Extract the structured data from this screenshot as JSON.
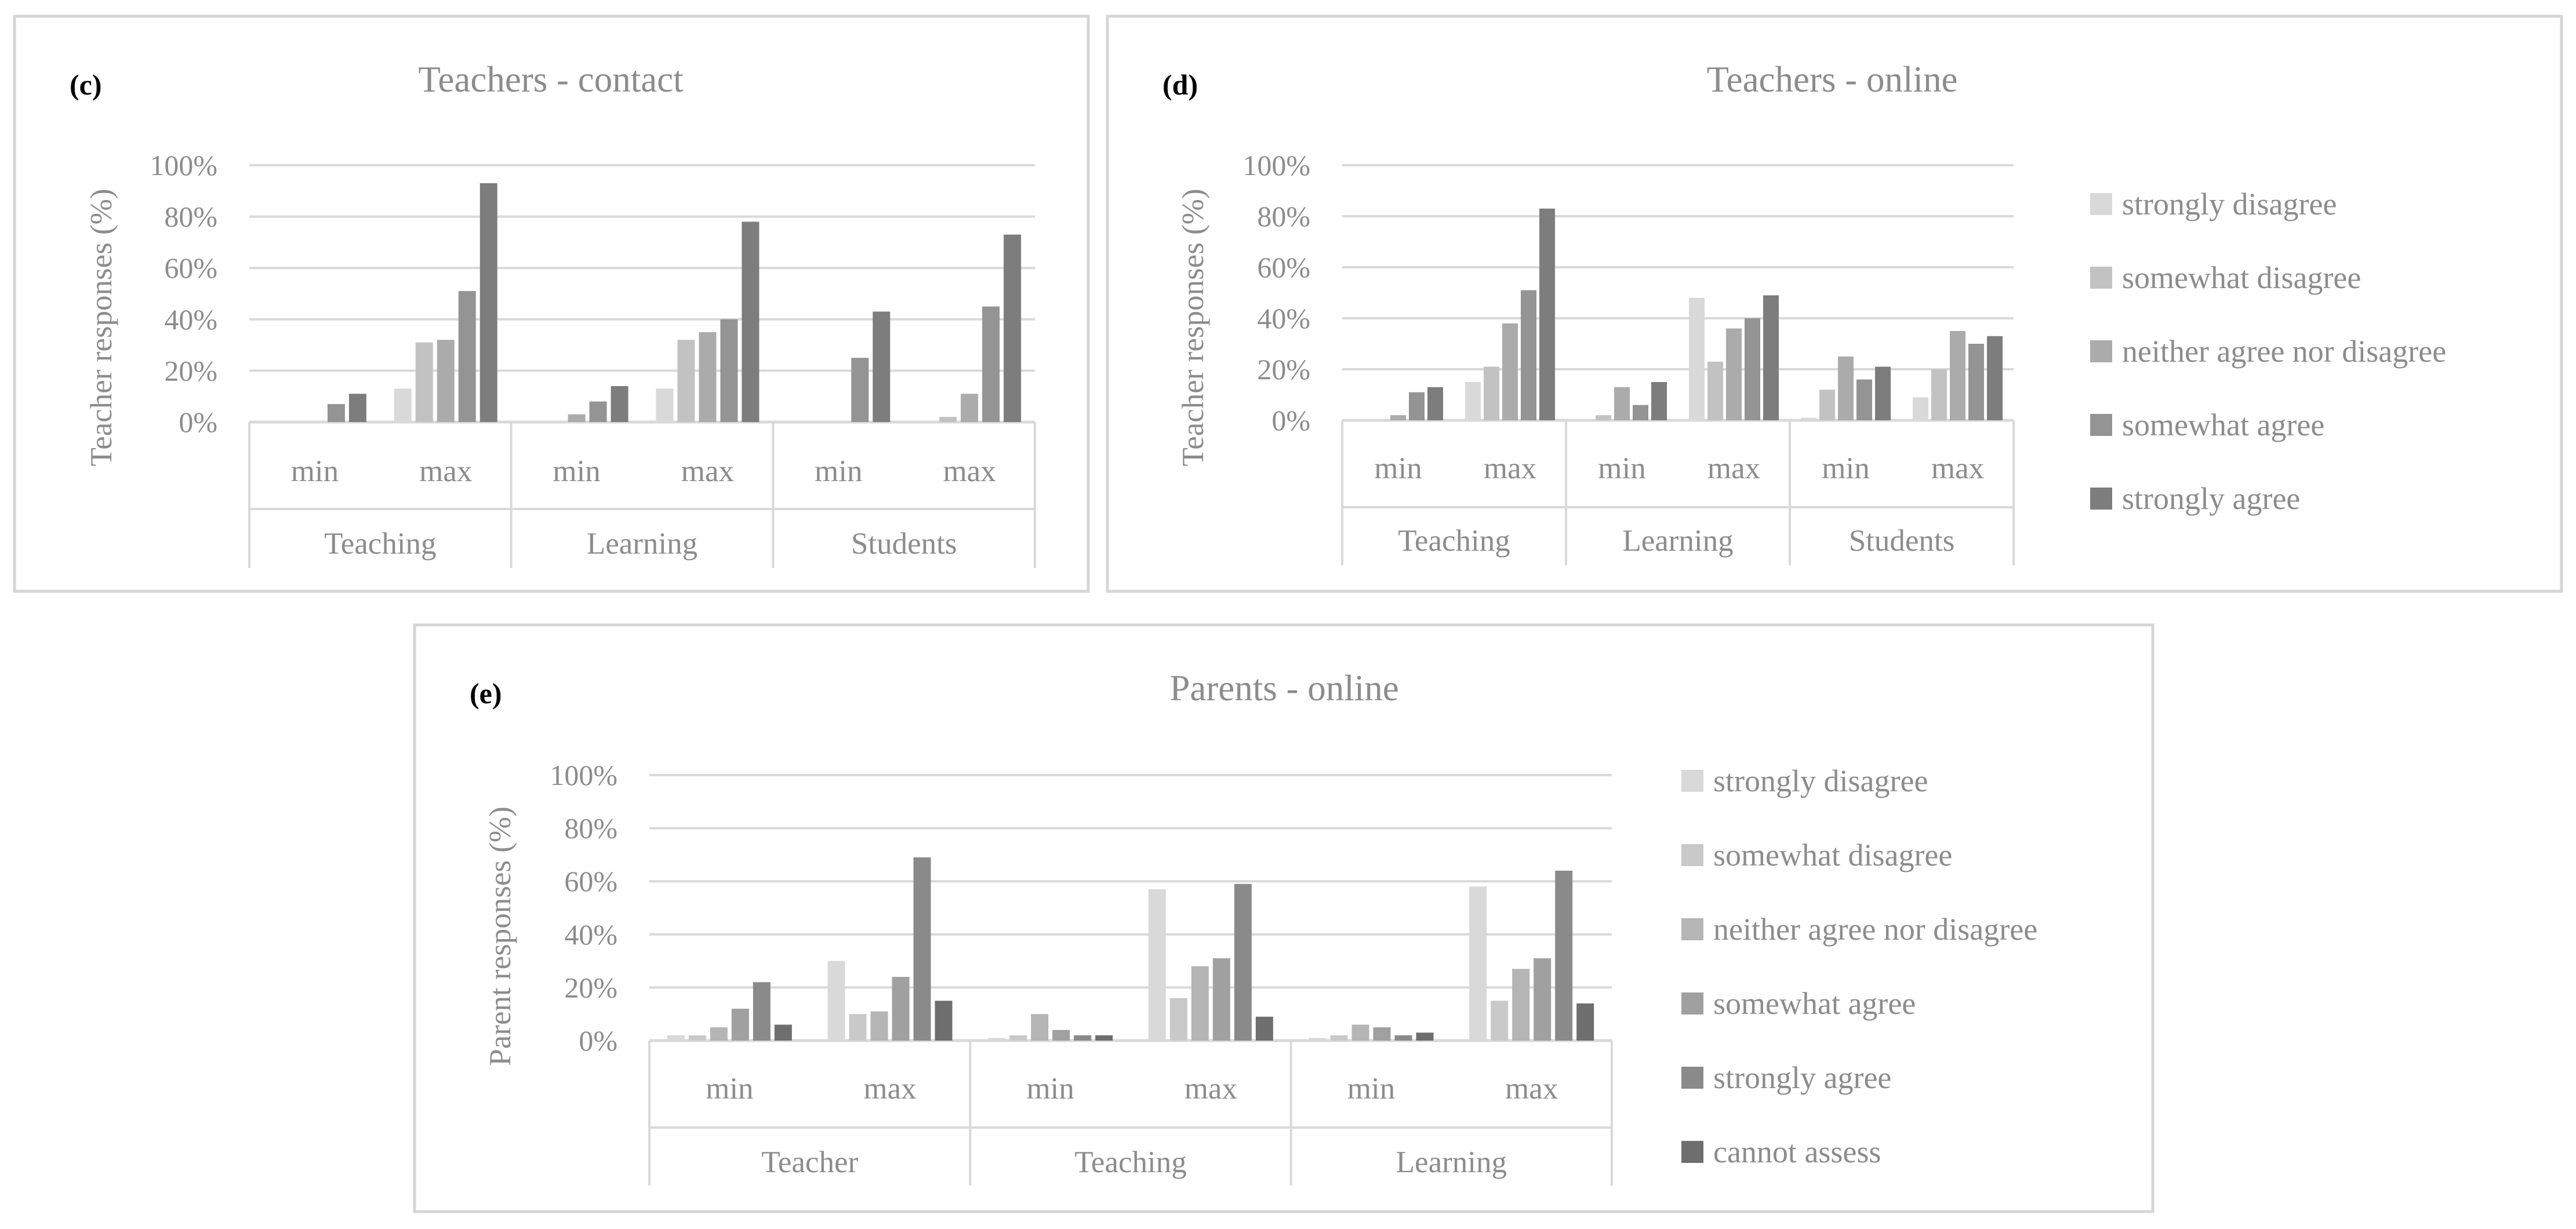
{
  "chart_data": [
    {
      "id": "c",
      "type": "bar",
      "panel_label": "(c)",
      "title": "Teachers - contact",
      "ylabel": "Teacher responses (%)",
      "ylim": [
        0,
        100
      ],
      "yticks": [
        "0%",
        "20%",
        "40%",
        "60%",
        "80%",
        "100%"
      ],
      "groups": [
        "Teaching",
        "Learning",
        "Students"
      ],
      "categories": [
        "min",
        "max",
        "min",
        "max",
        "min",
        "max"
      ],
      "legend_visible": false,
      "series": [
        {
          "name": "strongly disagree",
          "color": "#d9d9d9",
          "values": [
            0,
            13,
            0,
            13,
            0,
            0
          ]
        },
        {
          "name": "somewhat disagree",
          "color": "#c2c2c2",
          "values": [
            0,
            31,
            0,
            32,
            0,
            2
          ]
        },
        {
          "name": "neither agree nor disagree",
          "color": "#ababab",
          "values": [
            0,
            32,
            3,
            35,
            0,
            11
          ]
        },
        {
          "name": "somewhat agree",
          "color": "#949494",
          "values": [
            7,
            51,
            8,
            40,
            25,
            45
          ]
        },
        {
          "name": "strongly agree",
          "color": "#7d7d7d",
          "values": [
            11,
            93,
            14,
            78,
            43,
            73
          ]
        }
      ]
    },
    {
      "id": "d",
      "type": "bar",
      "panel_label": "(d)",
      "title": "Teachers - online",
      "ylabel": "Teacher responses (%)",
      "ylim": [
        0,
        100
      ],
      "yticks": [
        "0%",
        "20%",
        "40%",
        "60%",
        "80%",
        "100%"
      ],
      "groups": [
        "Teaching",
        "Learning",
        "Students"
      ],
      "categories": [
        "min",
        "max",
        "min",
        "max",
        "min",
        "max"
      ],
      "legend_visible": true,
      "series": [
        {
          "name": "strongly disagree",
          "color": "#d9d9d9",
          "values": [
            0,
            15,
            0,
            48,
            1,
            9
          ]
        },
        {
          "name": "somewhat disagree",
          "color": "#c2c2c2",
          "values": [
            0,
            21,
            2,
            23,
            12,
            20
          ]
        },
        {
          "name": "neither agree nor disagree",
          "color": "#ababab",
          "values": [
            2,
            38,
            13,
            36,
            25,
            35
          ]
        },
        {
          "name": "somewhat agree",
          "color": "#949494",
          "values": [
            11,
            51,
            6,
            40,
            16,
            30
          ]
        },
        {
          "name": "strongly agree",
          "color": "#7d7d7d",
          "values": [
            13,
            83,
            15,
            49,
            21,
            33
          ]
        }
      ]
    },
    {
      "id": "e",
      "type": "bar",
      "panel_label": "(e)",
      "title": "Parents - online",
      "ylabel": "Parent responses (%)",
      "ylim": [
        0,
        100
      ],
      "yticks": [
        "0%",
        "20%",
        "40%",
        "60%",
        "80%",
        "100%"
      ],
      "groups": [
        "Teacher",
        "Teaching",
        "Learning"
      ],
      "categories": [
        "min",
        "max",
        "min",
        "max",
        "min",
        "max"
      ],
      "legend_visible": true,
      "series": [
        {
          "name": "strongly disagree",
          "color": "#d9d9d9",
          "values": [
            2,
            30,
            1,
            57,
            1,
            58
          ]
        },
        {
          "name": "somewhat disagree",
          "color": "#c9c9c9",
          "values": [
            2,
            10,
            2,
            16,
            2,
            15
          ]
        },
        {
          "name": "neither agree nor disagree",
          "color": "#b5b5b5",
          "values": [
            5,
            11,
            10,
            28,
            6,
            27
          ]
        },
        {
          "name": "somewhat agree",
          "color": "#a0a0a0",
          "values": [
            12,
            24,
            4,
            31,
            5,
            31
          ]
        },
        {
          "name": "strongly agree",
          "color": "#8a8a8a",
          "values": [
            22,
            69,
            2,
            59,
            2,
            64
          ]
        },
        {
          "name": "cannot assess",
          "color": "#6e6e6e",
          "values": [
            6,
            15,
            2,
            9,
            3,
            14
          ]
        }
      ]
    }
  ]
}
